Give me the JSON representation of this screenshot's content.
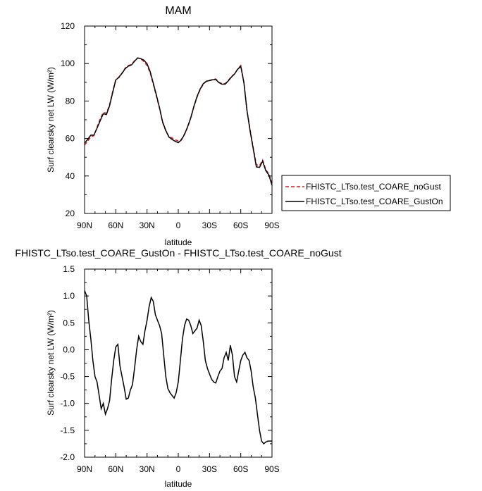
{
  "chart_data": [
    {
      "type": "line",
      "title": "MAM",
      "xlabel": "latitude",
      "ylabel": "Surf clearsky net LW (W/m²)",
      "xlim": [
        90,
        -90
      ],
      "ylim": [
        20,
        120
      ],
      "xtick_values": [
        90,
        60,
        30,
        0,
        -30,
        -60,
        -90
      ],
      "xtick_labels": [
        "90N",
        "60N",
        "30N",
        "0",
        "30S",
        "60S",
        "90S"
      ],
      "ytick_values": [
        20,
        40,
        60,
        80,
        100,
        120
      ],
      "ytick_labels": [
        "20",
        "40",
        "60",
        "80",
        "100",
        "120"
      ],
      "legend_position": "right",
      "series": [
        {
          "name": "FHISTC_LTso.test_COARE_noGust",
          "color": "#e0161b",
          "dash": "dashed",
          "x": [
            90,
            87,
            84,
            81,
            78,
            75,
            72,
            69,
            66,
            63,
            60,
            57,
            54,
            51,
            48,
            45,
            42,
            39,
            36,
            33,
            30,
            27,
            24,
            21,
            18,
            15,
            12,
            9,
            6,
            3,
            0,
            -3,
            -6,
            -9,
            -12,
            -15,
            -18,
            -21,
            -24,
            -27,
            -30,
            -33,
            -36,
            -39,
            -42,
            -45,
            -48,
            -51,
            -54,
            -57,
            -60,
            -63,
            -66,
            -69,
            -72,
            -75,
            -78,
            -81,
            -84,
            -87,
            -90
          ],
          "y": [
            56.5,
            58.5,
            61,
            61.5,
            66,
            70.5,
            74,
            73.5,
            78,
            85,
            91.5,
            92.5,
            95,
            97.5,
            99,
            99.5,
            101.5,
            103,
            102.5,
            101,
            99,
            95,
            89,
            82.5,
            76,
            68.5,
            64,
            61,
            60.3,
            59.3,
            58.7,
            59.5,
            62.5,
            66,
            71,
            77,
            82,
            86,
            89,
            90.5,
            91,
            91.5,
            91.8,
            90,
            89.3,
            89.3,
            91,
            93,
            94.5,
            97,
            99,
            90,
            75,
            64.5,
            55,
            46,
            45.5,
            48.5,
            43.5,
            41,
            36
          ]
        },
        {
          "name": "FHISTC_LTso.test_COARE_GustOn",
          "color": "#000000",
          "dash": "solid",
          "x": [
            90,
            87,
            84,
            81,
            78,
            75,
            72,
            69,
            66,
            63,
            60,
            57,
            54,
            51,
            48,
            45,
            42,
            39,
            36,
            33,
            30,
            27,
            24,
            21,
            18,
            15,
            12,
            9,
            6,
            3,
            0,
            -3,
            -6,
            -9,
            -12,
            -15,
            -18,
            -21,
            -24,
            -27,
            -30,
            -33,
            -36,
            -39,
            -42,
            -45,
            -48,
            -51,
            -54,
            -57,
            -60,
            -63,
            -66,
            -69,
            -72,
            -75,
            -78,
            -81,
            -84,
            -87,
            -90
          ],
          "y": [
            57.5,
            59.5,
            61.8,
            61.8,
            65.5,
            69.5,
            73.2,
            72.8,
            77.5,
            84.5,
            91.2,
            92.8,
            94.8,
            97.2,
            98.6,
            99.2,
            101.2,
            103,
            102.6,
            101.8,
            99.9,
            95.7,
            89.5,
            83.1,
            76.4,
            68.8,
            64.3,
            60.8,
            59.5,
            58.5,
            57.8,
            59.2,
            62.2,
            66.3,
            71,
            77.2,
            82.4,
            86.4,
            89.3,
            90.6,
            90.9,
            91.3,
            91.5,
            89.8,
            89,
            89,
            90.7,
            92.8,
            94.4,
            96.9,
            98.5,
            89.8,
            74.9,
            63.9,
            54.4,
            44.8,
            44.6,
            47.9,
            42.9,
            40.5,
            35
          ]
        }
      ]
    },
    {
      "type": "line",
      "title": "FHISTC_LTso.test_COARE_GustOn - FHISTC_LTso.test_COARE_noGust",
      "xlabel": "latitude",
      "ylabel": "Surf clearsky net LW (W/m²)",
      "xlim": [
        90,
        -90
      ],
      "ylim": [
        -2.0,
        1.5
      ],
      "xtick_values": [
        90,
        60,
        30,
        0,
        -30,
        -60,
        -90
      ],
      "xtick_labels": [
        "90N",
        "60N",
        "30N",
        "0",
        "30S",
        "60S",
        "90S"
      ],
      "ytick_values": [
        -2.0,
        -1.5,
        -1.0,
        -0.5,
        0.0,
        0.5,
        1.0,
        1.5
      ],
      "ytick_labels": [
        "-2.0",
        "-1.5",
        "-1.0",
        "-0.5",
        "0.0",
        "0.5",
        "1.0",
        "1.5"
      ],
      "series": [
        {
          "color": "#000000",
          "x": [
            90,
            88,
            86,
            84,
            82,
            80,
            78,
            76,
            74,
            72,
            70,
            68,
            66,
            64,
            62,
            60,
            58,
            56,
            54,
            52,
            50,
            48,
            46,
            44,
            42,
            40,
            38,
            36,
            34,
            32,
            30,
            28,
            26,
            24,
            22,
            20,
            18,
            16,
            14,
            12,
            10,
            8,
            6,
            4,
            2,
            0,
            -2,
            -4,
            -6,
            -8,
            -10,
            -12,
            -14,
            -16,
            -18,
            -20,
            -22,
            -24,
            -26,
            -28,
            -30,
            -32,
            -34,
            -36,
            -38,
            -40,
            -42,
            -44,
            -46,
            -48,
            -50,
            -52,
            -54,
            -56,
            -58,
            -60,
            -62,
            -64,
            -66,
            -68,
            -70,
            -72,
            -74,
            -76,
            -78,
            -80,
            -82,
            -84,
            -86,
            -88,
            -90
          ],
          "y": [
            1.1,
            1.0,
            0.55,
            0.2,
            -0.2,
            -0.5,
            -0.6,
            -0.85,
            -1.1,
            -1.0,
            -1.2,
            -1.1,
            -0.95,
            -0.55,
            -0.2,
            0.05,
            0.1,
            -0.3,
            -0.5,
            -0.7,
            -0.92,
            -0.9,
            -0.75,
            -0.65,
            -0.35,
            0.0,
            0.25,
            0.15,
            0.1,
            0.35,
            0.55,
            0.8,
            0.97,
            0.9,
            0.65,
            0.55,
            0.45,
            0.3,
            -0.1,
            -0.5,
            -0.72,
            -0.8,
            -0.85,
            -0.9,
            -0.8,
            -0.6,
            -0.2,
            0.2,
            0.45,
            0.57,
            0.55,
            0.45,
            0.3,
            0.35,
            0.4,
            0.55,
            0.45,
            0.15,
            -0.2,
            -0.35,
            -0.45,
            -0.55,
            -0.6,
            -0.62,
            -0.5,
            -0.4,
            -0.35,
            -0.15,
            -0.05,
            -0.2,
            0.08,
            -0.1,
            -0.5,
            -0.6,
            -0.4,
            -0.2,
            -0.1,
            -0.05,
            -0.15,
            -0.2,
            -0.4,
            -0.7,
            -0.9,
            -1.2,
            -1.5,
            -1.7,
            -1.75,
            -1.72,
            -1.7,
            -1.7,
            -1.7
          ]
        }
      ]
    }
  ]
}
